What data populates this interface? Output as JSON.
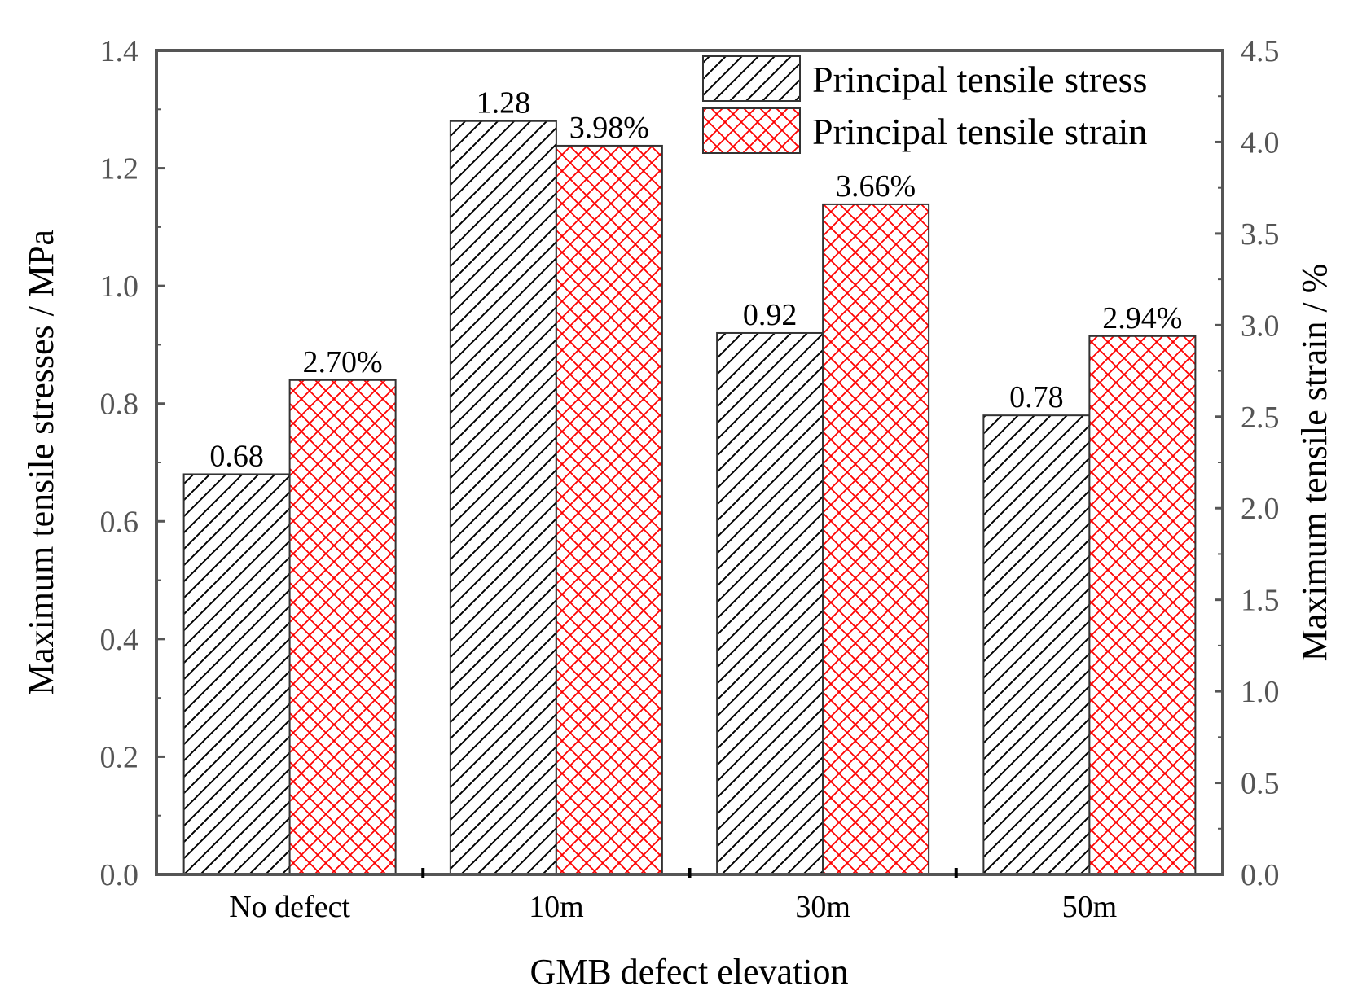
{
  "chart_data": {
    "type": "bar",
    "title": "",
    "xlabel": "GMB defect elevation",
    "ylabel": "Maximum tensile stresses / MPa",
    "y2label": "Maximum tensile strain / %",
    "categories": [
      "No defect",
      "10m",
      "30m",
      "50m"
    ],
    "ylim": [
      0,
      1.4
    ],
    "y2lim": [
      0,
      4.5
    ],
    "yticks": [
      "0.0",
      "0.2",
      "0.4",
      "0.6",
      "0.8",
      "1.0",
      "1.2",
      "1.4"
    ],
    "y2ticks": [
      "0.0",
      "0.5",
      "1.0",
      "1.5",
      "2.0",
      "2.5",
      "3.0",
      "3.5",
      "4.0",
      "4.5"
    ],
    "series": [
      {
        "name": "Principal tensile stress",
        "axis": "left",
        "values": [
          0.68,
          1.28,
          0.92,
          0.78
        ],
        "labels": [
          "0.68",
          "1.28",
          "0.92",
          "0.78"
        ],
        "pattern": "diagonal-hatch",
        "color": "#000000"
      },
      {
        "name": "Principal tensile strain",
        "axis": "right",
        "values": [
          2.7,
          3.98,
          3.66,
          2.94
        ],
        "labels": [
          "2.70%",
          "3.98%",
          "3.66%",
          "2.94%"
        ],
        "pattern": "crosshatch",
        "color": "#ff0000"
      }
    ],
    "legend": "top-right",
    "grid": false
  },
  "colors": {
    "axis": "#555555",
    "bar_border": "#333333"
  }
}
